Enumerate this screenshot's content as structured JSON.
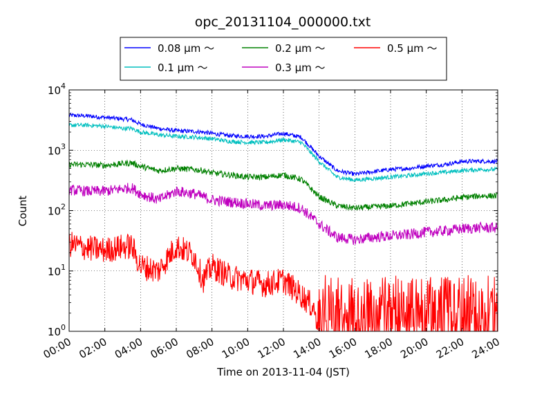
{
  "chart_data": {
    "type": "line",
    "title": "opc_20131104_000000.txt",
    "xlabel": "Time on 2013-11-04 (JST)",
    "ylabel": "Count",
    "yscale": "log",
    "ylim": [
      1,
      10000
    ],
    "xlim": [
      "00:00",
      "24:00"
    ],
    "grid": true,
    "legend_placement": "top-center",
    "x_ticks": [
      "00:00",
      "02:00",
      "04:00",
      "06:00",
      "08:00",
      "10:00",
      "12:00",
      "14:00",
      "16:00",
      "18:00",
      "20:00",
      "22:00",
      "24:00"
    ],
    "y_ticks": [
      {
        "base": "10",
        "exp": "0",
        "value": 1
      },
      {
        "base": "10",
        "exp": "1",
        "value": 10
      },
      {
        "base": "10",
        "exp": "2",
        "value": 100
      },
      {
        "base": "10",
        "exp": "3",
        "value": 1000
      },
      {
        "base": "10",
        "exp": "4",
        "value": 10000
      }
    ],
    "x_hours": [
      0,
      1,
      2,
      3,
      3.5,
      4,
      5,
      6,
      7,
      7.5,
      8,
      9,
      10,
      11,
      12,
      13,
      14,
      15,
      16,
      17,
      18,
      19,
      20,
      21,
      22,
      23,
      24
    ],
    "series": [
      {
        "name": "0.08 μm ～",
        "color": "#0000ff",
        "values": [
          3800,
          3700,
          3500,
          3300,
          3200,
          2700,
          2300,
          2100,
          2050,
          2000,
          1900,
          1750,
          1700,
          1700,
          1900,
          1650,
          800,
          460,
          400,
          440,
          480,
          500,
          550,
          580,
          650,
          660,
          650
        ]
      },
      {
        "name": "0.1 μm ～",
        "color": "#00bfbf",
        "values": [
          2600,
          2600,
          2500,
          2300,
          2300,
          2000,
          1800,
          1700,
          1650,
          1600,
          1550,
          1400,
          1350,
          1350,
          1500,
          1350,
          650,
          360,
          320,
          340,
          360,
          380,
          410,
          430,
          460,
          480,
          480
        ]
      },
      {
        "name": "0.2 μm ～",
        "color": "#008000",
        "values": [
          580,
          580,
          560,
          600,
          620,
          540,
          460,
          500,
          480,
          460,
          420,
          390,
          360,
          360,
          390,
          330,
          170,
          120,
          110,
          115,
          120,
          130,
          140,
          150,
          165,
          175,
          175
        ]
      },
      {
        "name": "0.3 μm ～",
        "color": "#bf00bf",
        "values": [
          220,
          210,
          210,
          230,
          240,
          190,
          150,
          210,
          190,
          170,
          150,
          140,
          130,
          120,
          125,
          110,
          60,
          36,
          33,
          36,
          38,
          40,
          44,
          46,
          50,
          52,
          52
        ]
      },
      {
        "name": "0.5 μm ～",
        "color": "#ff0000",
        "values": [
          28,
          24,
          22,
          25,
          26,
          12,
          10,
          26,
          18,
          7,
          12,
          8,
          7,
          6,
          7,
          4,
          2,
          2,
          2,
          2,
          2,
          2,
          2,
          2,
          2,
          2,
          2
        ]
      }
    ]
  }
}
